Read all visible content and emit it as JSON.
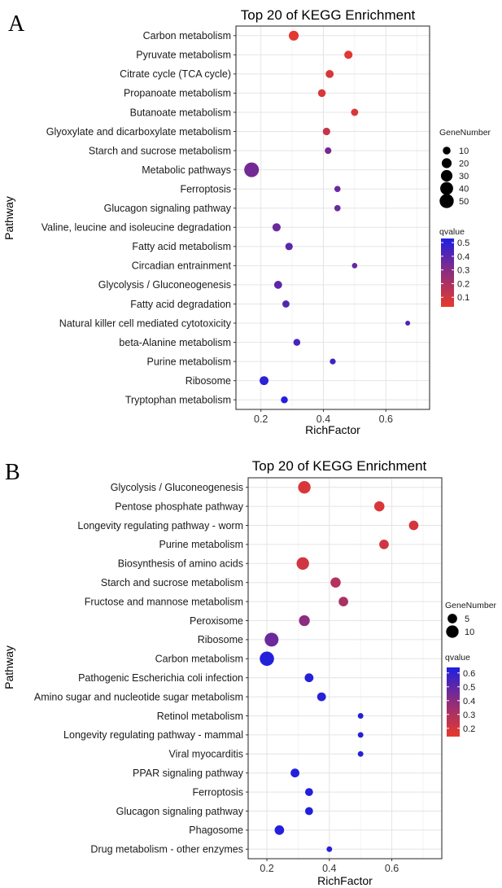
{
  "chart_data": [
    {
      "panel": "A",
      "type": "scatter",
      "title": "Top 20 of KEGG Enrichment",
      "xlabel": "RichFactor",
      "ylabel": "Pathway",
      "xlim": [
        0.12,
        0.74
      ],
      "xticks": [
        "0.2",
        "0.4",
        "0.6"
      ],
      "grid": true,
      "size_legend": {
        "title": "GeneNumber",
        "labels": [
          "10",
          "20",
          "30",
          "40",
          "50"
        ],
        "values": [
          10,
          20,
          30,
          40,
          50
        ]
      },
      "color_legend": {
        "title": "qvalue",
        "labels": [
          "0.5",
          "0.4",
          "0.3",
          "0.2",
          "0.1"
        ],
        "values": [
          0.5,
          0.4,
          0.3,
          0.2,
          0.1
        ],
        "min": 0.03,
        "max": 0.53,
        "low_color": "#e8392c",
        "high_color": "#1f1fe0"
      },
      "points": [
        {
          "pathway": "Carbon metabolism",
          "rich": 0.305,
          "genes": 20,
          "q": 0.04
        },
        {
          "pathway": "Pyruvate metabolism",
          "rich": 0.48,
          "genes": 12,
          "q": 0.05
        },
        {
          "pathway": "Citrate cycle (TCA cycle)",
          "rich": 0.42,
          "genes": 11,
          "q": 0.07
        },
        {
          "pathway": "Propanoate metabolism",
          "rich": 0.395,
          "genes": 10,
          "q": 0.07
        },
        {
          "pathway": "Butanoate metabolism",
          "rich": 0.5,
          "genes": 8,
          "q": 0.07
        },
        {
          "pathway": "Glyoxylate and dicarboxylate metabolism",
          "rich": 0.41,
          "genes": 9,
          "q": 0.12
        },
        {
          "pathway": "Starch and sucrose metabolism",
          "rich": 0.415,
          "genes": 6,
          "q": 0.32
        },
        {
          "pathway": "Metabolic pathways",
          "rich": 0.17,
          "genes": 55,
          "q": 0.32
        },
        {
          "pathway": "Ferroptosis",
          "rich": 0.445,
          "genes": 5,
          "q": 0.34
        },
        {
          "pathway": "Glucagon signaling pathway",
          "rich": 0.445,
          "genes": 5,
          "q": 0.34
        },
        {
          "pathway": "Valine, leucine and isoleucine degradation",
          "rich": 0.25,
          "genes": 12,
          "q": 0.34
        },
        {
          "pathway": "Fatty acid metabolism",
          "rich": 0.29,
          "genes": 9,
          "q": 0.38
        },
        {
          "pathway": "Circadian entrainment",
          "rich": 0.5,
          "genes": 3,
          "q": 0.36
        },
        {
          "pathway": "Glycolysis / Gluconeogenesis",
          "rich": 0.255,
          "genes": 11,
          "q": 0.38
        },
        {
          "pathway": "Fatty acid degradation",
          "rich": 0.28,
          "genes": 8,
          "q": 0.4
        },
        {
          "pathway": "Natural killer cell mediated cytotoxicity",
          "rich": 0.67,
          "genes": 2,
          "q": 0.41
        },
        {
          "pathway": "beta-Alanine metabolism",
          "rich": 0.315,
          "genes": 7,
          "q": 0.43
        },
        {
          "pathway": "Purine metabolism",
          "rich": 0.43,
          "genes": 4,
          "q": 0.45
        },
        {
          "pathway": "Ribosome",
          "rich": 0.21,
          "genes": 15,
          "q": 0.5
        },
        {
          "pathway": "Tryptophan metabolism",
          "rich": 0.275,
          "genes": 7,
          "q": 0.52
        }
      ]
    },
    {
      "panel": "B",
      "type": "scatter",
      "title": "Top 20 of KEGG Enrichment",
      "xlabel": "RichFactor",
      "ylabel": "Pathway",
      "xlim": [
        0.14,
        0.76
      ],
      "xticks": [
        "0.2",
        "0.4",
        "0.6"
      ],
      "grid": true,
      "size_legend": {
        "title": "GeneNumber",
        "labels": [
          "5",
          "10"
        ],
        "values": [
          5,
          10
        ]
      },
      "color_legend": {
        "title": "qvalue",
        "labels": [
          "0.6",
          "0.5",
          "0.4",
          "0.3",
          "0.2"
        ],
        "values": [
          0.6,
          0.5,
          0.4,
          0.3,
          0.2
        ],
        "min": 0.14,
        "max": 0.64,
        "low_color": "#e8392c",
        "high_color": "#1f1fe0"
      },
      "points": [
        {
          "pathway": "Glycolysis / Gluconeogenesis",
          "rich": 0.32,
          "genes": 10,
          "q": 0.18
        },
        {
          "pathway": "Pentose phosphate pathway",
          "rich": 0.56,
          "genes": 6,
          "q": 0.18
        },
        {
          "pathway": "Longevity regulating pathway - worm",
          "rich": 0.67,
          "genes": 5,
          "q": 0.19
        },
        {
          "pathway": "Purine metabolism",
          "rich": 0.575,
          "genes": 5,
          "q": 0.2
        },
        {
          "pathway": "Biosynthesis of amino acids",
          "rich": 0.315,
          "genes": 10,
          "q": 0.2
        },
        {
          "pathway": "Starch and sucrose metabolism",
          "rich": 0.42,
          "genes": 6,
          "q": 0.27
        },
        {
          "pathway": "Fructose and mannose metabolism",
          "rich": 0.445,
          "genes": 5,
          "q": 0.3
        },
        {
          "pathway": "Peroxisome",
          "rich": 0.32,
          "genes": 7,
          "q": 0.37
        },
        {
          "pathway": "Ribosome",
          "rich": 0.215,
          "genes": 13,
          "q": 0.45
        },
        {
          "pathway": "Carbon metabolism",
          "rich": 0.2,
          "genes": 14,
          "q": 0.63
        },
        {
          "pathway": "Pathogenic Escherichia coli infection",
          "rich": 0.335,
          "genes": 4,
          "q": 0.62
        },
        {
          "pathway": "Amino sugar and nucleotide sugar metabolism",
          "rich": 0.375,
          "genes": 4,
          "q": 0.62
        },
        {
          "pathway": "Retinol metabolism",
          "rich": 0.5,
          "genes": 1,
          "q": 0.63
        },
        {
          "pathway": "Longevity regulating pathway - mammal",
          "rich": 0.5,
          "genes": 1,
          "q": 0.63
        },
        {
          "pathway": "Viral myocarditis",
          "rich": 0.5,
          "genes": 1,
          "q": 0.63
        },
        {
          "pathway": "PPAR signaling pathway",
          "rich": 0.29,
          "genes": 4,
          "q": 0.63
        },
        {
          "pathway": "Ferroptosis",
          "rich": 0.335,
          "genes": 3,
          "q": 0.63
        },
        {
          "pathway": "Glucagon signaling pathway",
          "rich": 0.335,
          "genes": 3,
          "q": 0.63
        },
        {
          "pathway": "Phagosome",
          "rich": 0.24,
          "genes": 5,
          "q": 0.63
        },
        {
          "pathway": "Drug metabolism - other enzymes",
          "rich": 0.4,
          "genes": 1,
          "q": 0.63
        }
      ]
    }
  ]
}
